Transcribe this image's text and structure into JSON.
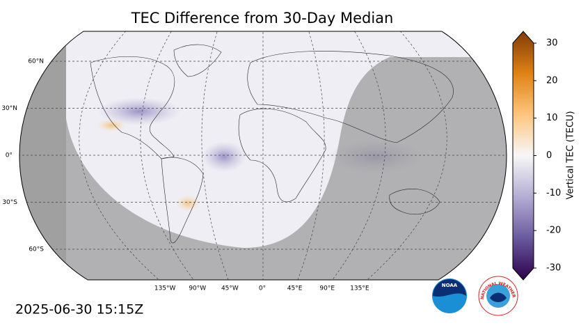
{
  "title": "TEC Difference from 30-Day Median",
  "map": {
    "lat_labels": [
      {
        "value": 60,
        "label": "60°N"
      },
      {
        "value": 30,
        "label": "30°N"
      },
      {
        "value": 0,
        "label": "0°"
      },
      {
        "value": -30,
        "label": "30°S"
      },
      {
        "value": -60,
        "label": "60°S"
      }
    ],
    "lon_labels": [
      {
        "value": -135,
        "label": "135°W"
      },
      {
        "value": -90,
        "label": "90°W"
      },
      {
        "value": -45,
        "label": "45°W"
      },
      {
        "value": 0,
        "label": "0°"
      },
      {
        "value": 45,
        "label": "45°E"
      },
      {
        "value": 90,
        "label": "90°E"
      },
      {
        "value": 135,
        "label": "135°E"
      }
    ]
  },
  "colorbar": {
    "label": "Vertical TEC (TECU)",
    "lim": [
      -30,
      30
    ],
    "ticks": [
      -30,
      -20,
      -10,
      0,
      10,
      20,
      30
    ]
  },
  "timestamp": "2025-06-30 15:15Z",
  "logos": {
    "noaa": "NOAA",
    "nws": "NATIONAL WEATHER SERVICE"
  }
}
